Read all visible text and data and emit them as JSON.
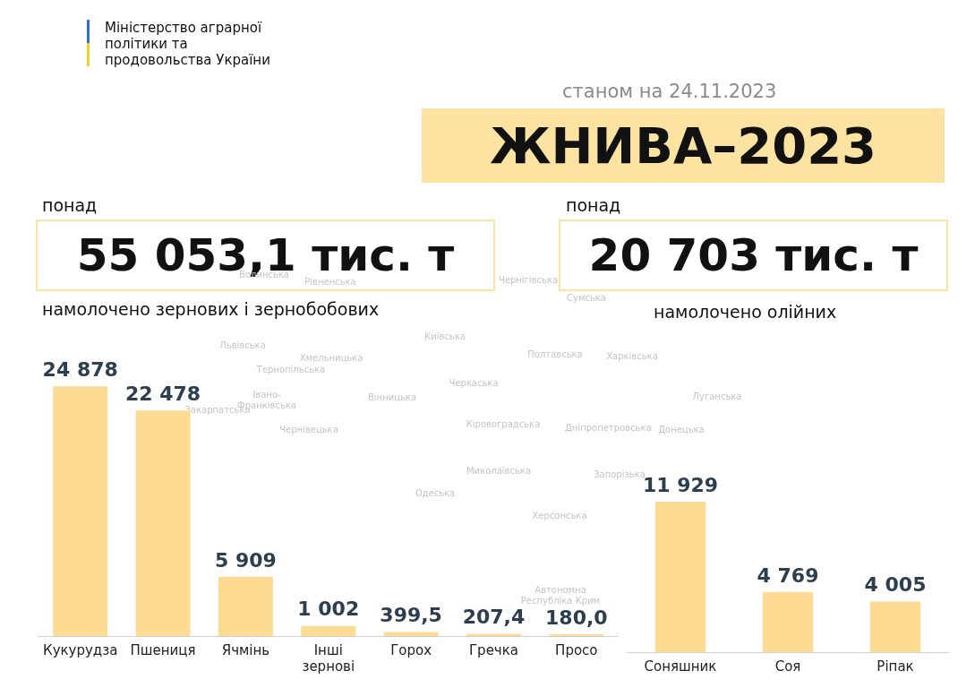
{
  "chart_data": [
    {
      "type": "other",
      "title": "ЖНИВА–2023",
      "subtitle": "станом на 24.11.2023",
      "annotations": [
        "Міністерство аграрної політики та продовольства України",
        "понад",
        "55 053,1 тис. т",
        "намолочено зернових і зернобобових",
        "понад",
        "20 703 тис. т",
        "намолочено олійних",
        "Волинська",
        "Рівненська",
        "Чернігівська",
        "Сумська",
        "Львівська",
        "Хмельницька",
        "Тернопільська",
        "Івано-Франківська",
        "Закарпатська",
        "Вінницька",
        "Чернівецька",
        "Київська",
        "Полтавська",
        "Харківська",
        "Черкаська",
        "Кіровоградська",
        "Дніпропетровська",
        "Луганська",
        "Донецька",
        "Миколаївська",
        "Запорізька",
        "Одеська",
        "Херсонська",
        "Автономна Республіка Крим"
      ]
    },
    {
      "type": "bar",
      "categories": [
        "Кукурудза",
        "Пшениця",
        "Ячмінь",
        "Інші зернові",
        "Горох",
        "Гречка",
        "Просо"
      ],
      "values": [
        24878,
        22478,
        5909,
        1002,
        399.5,
        207.4,
        180.0
      ],
      "color": "#fddb92",
      "value_labels": [
        "24 878",
        "22 478",
        "5 909",
        "1 002",
        "399,5",
        "207,4",
        "180,0"
      ],
      "legend": false,
      "grid": false
    },
    {
      "type": "bar",
      "categories": [
        "Соняшник",
        "Соя",
        "Ріпак"
      ],
      "values": [
        11929,
        4769,
        4005
      ],
      "color": "#fddb92",
      "value_labels": [
        "11 929",
        "4 769",
        "4 005"
      ],
      "legend": false,
      "grid": false
    }
  ]
}
